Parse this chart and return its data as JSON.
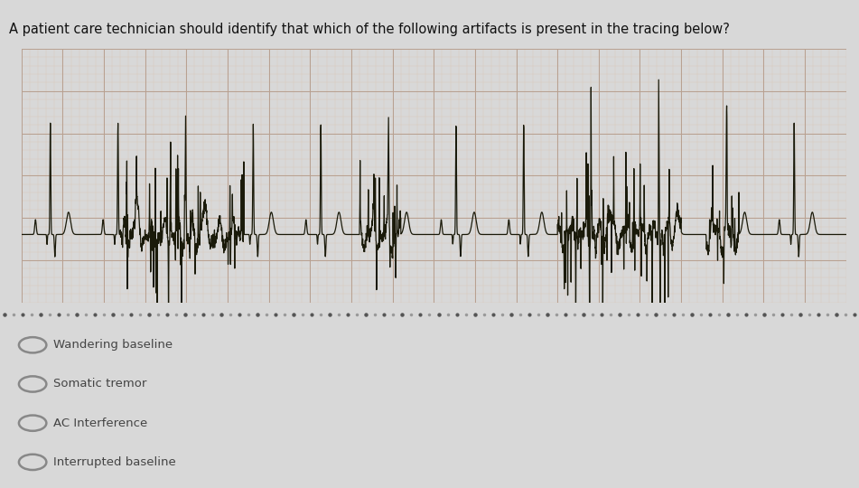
{
  "title": "A patient care technician should identify that which of the following artifacts is present in the tracing below?",
  "title_fontsize": 10.5,
  "options": [
    "Wandering baseline",
    "Somatic tremor",
    "AC Interference",
    "Interrupted baseline"
  ],
  "bg_color": "#d8d8d8",
  "ecg_color": "#1a1a0a",
  "grid_major_color": "#b8a090",
  "grid_minor_color": "#d8c8b8",
  "ecg_bg": "#ede0cc",
  "option_circle_color": "#888888",
  "option_text_color": "#444444"
}
